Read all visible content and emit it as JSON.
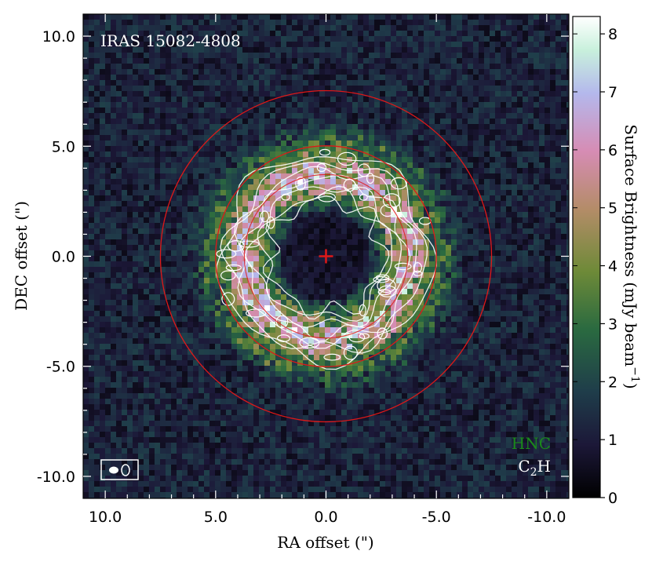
{
  "chart_data": {
    "type": "heatmap",
    "title": "IRAS 15082-4808",
    "xlabel": "RA offset (\")",
    "ylabel": "DEC offset (\")",
    "xlim": [
      11.0,
      -11.0
    ],
    "ylim": [
      -11.0,
      11.0
    ],
    "x_ticks": [
      "10.0",
      "5.0",
      "0.0",
      "-5.0",
      "-10.0"
    ],
    "y_ticks": [
      "10.0",
      "5.0",
      "0.0",
      "-5.0",
      "-10.0"
    ],
    "colorbar": {
      "label": "Surface Brightness (mJy beam",
      "label_exp": "−1",
      "label_close": ")",
      "range": [
        0,
        8.3
      ],
      "ticks": [
        "0",
        "1",
        "2",
        "3",
        "4",
        "5",
        "6",
        "7",
        "8"
      ],
      "colors": [
        "#000000",
        "#1c1838",
        "#1f3d4a",
        "#2a6a40",
        "#6e8a38",
        "#b48c68",
        "#d68cb4",
        "#b4b8ec",
        "#c8f0dc",
        "#ffffff"
      ]
    },
    "series": [
      {
        "name": "HNC",
        "kind": "color map",
        "color": "#1a8a1a"
      },
      {
        "name": "C2H",
        "kind": "contours",
        "color": "#ffffff"
      }
    ],
    "ring_peak_radius_arcsec": 3.7,
    "reference_circles_radius_arcsec": [
      5.0,
      7.5
    ],
    "circle_color": "#e01818",
    "star_marker": {
      "ra": 0.0,
      "dec": 0.0,
      "color": "#e01818"
    }
  },
  "legend": {
    "hnc": "HNC",
    "c2h_main": "C",
    "c2h_sub": "2",
    "c2h_tail": "H"
  }
}
